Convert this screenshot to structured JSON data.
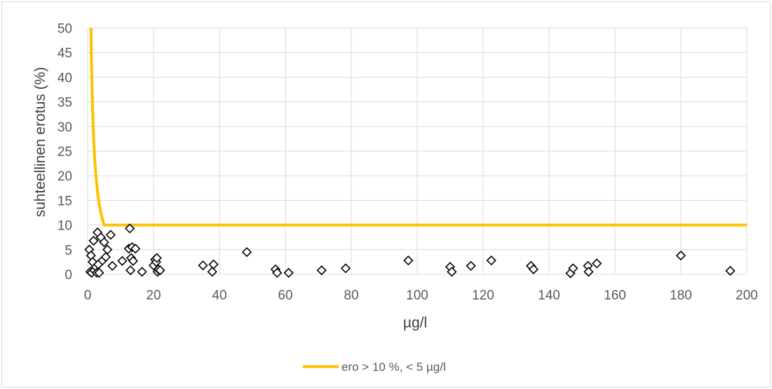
{
  "chart_data": {
    "type": "scatter",
    "xlabel": "µg/l",
    "ylabel": "suhteellinen erotus (%)",
    "xlim": [
      0,
      200
    ],
    "ylim": [
      0,
      50
    ],
    "x_ticks": [
      "0",
      "20",
      "40",
      "60",
      "80",
      "100",
      "120",
      "140",
      "160",
      "180",
      "200"
    ],
    "y_ticks": [
      "0",
      "5",
      "10",
      "15",
      "20",
      "25",
      "30",
      "35",
      "40",
      "45",
      "50"
    ],
    "grid": "major gridlines on both axes",
    "legend_position": "bottom",
    "series": [
      {
        "name": "",
        "marker": "diamond-open",
        "color": "#000000",
        "points": [
          [
            0.5,
            5.0
          ],
          [
            0.8,
            0.5
          ],
          [
            1.0,
            3.8
          ],
          [
            1.2,
            0.3
          ],
          [
            1.5,
            2.5
          ],
          [
            1.8,
            6.8
          ],
          [
            2.0,
            0.8
          ],
          [
            2.5,
            1.5
          ],
          [
            2.8,
            0.3
          ],
          [
            3.0,
            8.5
          ],
          [
            3.2,
            2.0
          ],
          [
            3.5,
            0.3
          ],
          [
            4.0,
            7.5
          ],
          [
            4.5,
            2.8
          ],
          [
            5.0,
            6.5
          ],
          [
            5.5,
            3.5
          ],
          [
            6.0,
            5.0
          ],
          [
            7.0,
            8.0
          ],
          [
            7.5,
            1.7
          ],
          [
            10.5,
            2.7
          ],
          [
            12.5,
            5.2
          ],
          [
            12.8,
            9.3
          ],
          [
            13.0,
            0.8
          ],
          [
            13.2,
            3.3
          ],
          [
            13.5,
            5.5
          ],
          [
            13.8,
            2.7
          ],
          [
            14.5,
            5.2
          ],
          [
            16.5,
            0.5
          ],
          [
            20.0,
            1.8
          ],
          [
            20.5,
            3.0
          ],
          [
            20.8,
            2.5
          ],
          [
            21.0,
            3.3
          ],
          [
            21.2,
            0.5
          ],
          [
            21.5,
            1.0
          ],
          [
            22.0,
            0.8
          ],
          [
            35.0,
            1.8
          ],
          [
            37.8,
            0.5
          ],
          [
            38.2,
            2.0
          ],
          [
            48.3,
            4.5
          ],
          [
            57.0,
            1.0
          ],
          [
            57.5,
            0.3
          ],
          [
            61.0,
            0.3
          ],
          [
            71.0,
            0.8
          ],
          [
            78.3,
            1.2
          ],
          [
            97.3,
            2.8
          ],
          [
            110.0,
            1.5
          ],
          [
            110.5,
            0.5
          ],
          [
            116.3,
            1.7
          ],
          [
            122.5,
            2.8
          ],
          [
            134.5,
            1.7
          ],
          [
            135.3,
            1.0
          ],
          [
            146.5,
            0.2
          ],
          [
            147.3,
            1.2
          ],
          [
            151.8,
            1.7
          ],
          [
            152.0,
            0.5
          ],
          [
            154.5,
            2.2
          ],
          [
            180.0,
            3.8
          ],
          [
            195.0,
            0.7
          ]
        ]
      },
      {
        "name": "ero > 10 %, < 5 µg/l",
        "type": "line",
        "color": "#ffc000",
        "points": [
          [
            1.0,
            50
          ],
          [
            1.25,
            40
          ],
          [
            1.5,
            33.3
          ],
          [
            1.75,
            28.6
          ],
          [
            2.0,
            25
          ],
          [
            2.5,
            20
          ],
          [
            3.0,
            16.7
          ],
          [
            3.5,
            14.3
          ],
          [
            4.0,
            12.5
          ],
          [
            4.5,
            11.1
          ],
          [
            5.0,
            10
          ],
          [
            200,
            10
          ]
        ]
      }
    ]
  },
  "legend": {
    "label": "ero > 10 %, < 5 µg/l"
  }
}
